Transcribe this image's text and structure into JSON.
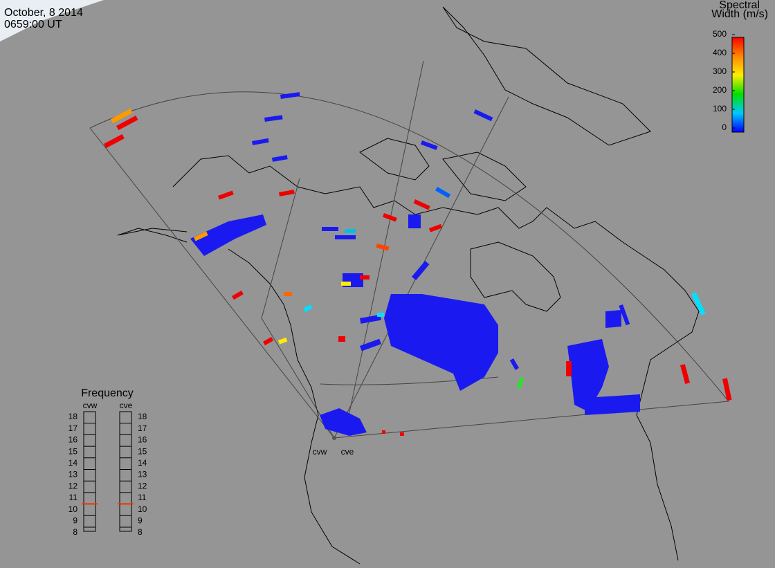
{
  "header": {
    "date": "October, 8 2014",
    "time": "0659:00 UT"
  },
  "colorbar": {
    "title": [
      "Spectral",
      "Width (m/s)"
    ],
    "lim": [
      0,
      500
    ],
    "ticks": [
      0,
      100,
      200,
      300,
      400,
      500
    ]
  },
  "frequency": {
    "title": "Frequency",
    "lim": [
      8,
      18
    ],
    "ticks": [
      8,
      9,
      10,
      11,
      12,
      13,
      14,
      15,
      16,
      17,
      18
    ],
    "radars": [
      {
        "name": "cvw",
        "value": 10.5
      },
      {
        "name": "cve",
        "value": 10.5
      }
    ]
  },
  "radar_labels": [
    "cvw",
    "cve"
  ]
}
